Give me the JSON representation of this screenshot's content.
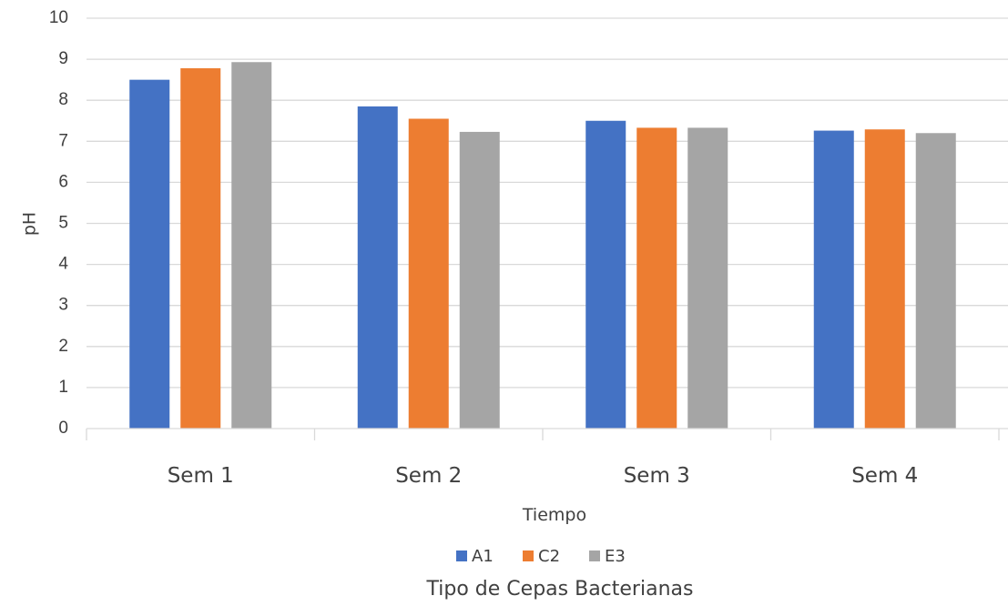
{
  "chart_data": {
    "type": "bar",
    "categories": [
      "Sem 1",
      "Sem 2",
      "Sem 3",
      "Sem 4"
    ],
    "series": [
      {
        "name": "A1",
        "color": "#4472C4",
        "values": [
          8.5,
          7.85,
          7.5,
          7.26
        ]
      },
      {
        "name": "C2",
        "color": "#ED7D31",
        "values": [
          8.78,
          7.55,
          7.33,
          7.29
        ]
      },
      {
        "name": "E3",
        "color": "#A5A5A5",
        "values": [
          8.93,
          7.23,
          7.33,
          7.2
        ]
      }
    ],
    "title": "",
    "xlabel": "Tiempo",
    "ylabel": "pH",
    "legend_title": "Tipo de Cepas Bacterianas",
    "ylim": [
      0,
      10
    ],
    "yticks": [
      0,
      1,
      2,
      3,
      4,
      5,
      6,
      7,
      8,
      9,
      10
    ],
    "grid": true,
    "legend_position": "bottom",
    "gridline_color": "#D9D9D9"
  }
}
